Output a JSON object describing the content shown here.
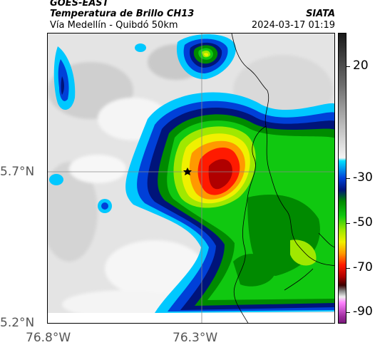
{
  "header": {
    "source": "GOES-EAST",
    "title": "Temperatura de Brillo CH13",
    "subtitle": "Vía Medellín - Quibdó 50km",
    "organization": "SIATA",
    "datetime": "2024-03-17 01:19"
  },
  "map": {
    "lat_labels": [
      "5.7°N",
      "5.2°N"
    ],
    "lon_labels": [
      "76.8°W",
      "76.3°W"
    ],
    "marker_icon": "star-icon",
    "colors": {
      "white": "#f2f2f2",
      "gray": "#c8c8c8",
      "cyan": "#00c8ff",
      "blue": "#0040d8",
      "navy": "#00147a",
      "darkgreen": "#008a00",
      "green": "#10c810",
      "lime": "#a0e800",
      "yellow": "#f0f000",
      "orange": "#ff9900",
      "red": "#ff1a00",
      "darkred": "#b00000"
    }
  },
  "colorbar": {
    "labels": [
      "20",
      "-30",
      "-50",
      "-70",
      "-90"
    ],
    "values": [
      20,
      -30,
      -50,
      -70,
      -90
    ],
    "range": [
      -95,
      35
    ]
  }
}
